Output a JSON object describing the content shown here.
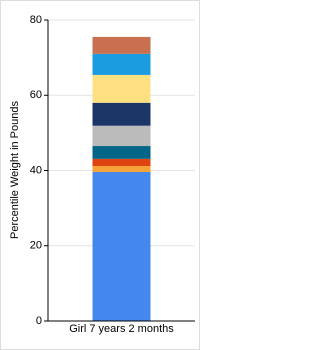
{
  "chart_data": {
    "type": "stacked-bar",
    "y_label": "Percentile Weight in Pounds",
    "categories": [
      "Girl 7 years 2 months"
    ],
    "series": [
      {
        "color": "#4488ee",
        "values": [
          39.6
        ]
      },
      {
        "color": "#f5a23a",
        "values": [
          1.6
        ]
      },
      {
        "color": "#dd4411",
        "values": [
          1.9
        ]
      },
      {
        "color": "#006688",
        "values": [
          3.4
        ]
      },
      {
        "color": "#bbbbbb",
        "values": [
          5.4
        ]
      },
      {
        "color": "#1a3666",
        "values": [
          6.1
        ]
      },
      {
        "color": "#fde080",
        "values": [
          7.4
        ]
      },
      {
        "color": "#1c9ce0",
        "values": [
          5.6
        ]
      },
      {
        "color": "#c87050",
        "values": [
          4.5
        ]
      }
    ],
    "ylim": [
      0,
      80
    ],
    "yticks": [
      0,
      20,
      40,
      60,
      80
    ],
    "grid": true
  }
}
